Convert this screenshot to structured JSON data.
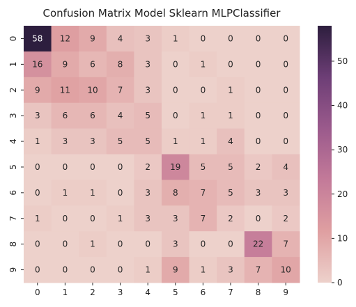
{
  "chart_data": {
    "type": "heatmap",
    "title": "Confusion Matrix Model Sklearn MLPClassifier",
    "xlabel": "",
    "ylabel": "",
    "x_categories": [
      "0",
      "1",
      "2",
      "3",
      "4",
      "5",
      "6",
      "7",
      "8",
      "9"
    ],
    "y_categories": [
      "0",
      "1",
      "2",
      "3",
      "4",
      "5",
      "6",
      "7",
      "8",
      "9"
    ],
    "values": [
      [
        58,
        12,
        9,
        4,
        3,
        1,
        0,
        0,
        0,
        0
      ],
      [
        16,
        9,
        6,
        8,
        3,
        0,
        1,
        0,
        0,
        0
      ],
      [
        9,
        11,
        10,
        7,
        3,
        0,
        0,
        1,
        0,
        0
      ],
      [
        3,
        6,
        6,
        4,
        5,
        0,
        1,
        1,
        0,
        0
      ],
      [
        1,
        3,
        3,
        5,
        5,
        1,
        1,
        4,
        0,
        0
      ],
      [
        0,
        0,
        0,
        0,
        2,
        19,
        5,
        5,
        2,
        4
      ],
      [
        0,
        1,
        1,
        0,
        3,
        8,
        7,
        5,
        3,
        3
      ],
      [
        1,
        0,
        0,
        1,
        3,
        3,
        7,
        2,
        0,
        2
      ],
      [
        0,
        0,
        1,
        0,
        0,
        3,
        0,
        0,
        22,
        7
      ],
      [
        0,
        0,
        0,
        0,
        1,
        9,
        1,
        3,
        7,
        10
      ]
    ],
    "vmin": 0,
    "vmax": 58,
    "colorbar": {
      "ticks": [
        0,
        10,
        20,
        30,
        40,
        50
      ],
      "tick_labels": [
        "0",
        "10",
        "20",
        "30",
        "40",
        "50"
      ]
    },
    "colormap_colors": [
      "#edd1cb",
      "#df9fa1",
      "#c37a99",
      "#9b5a8c",
      "#6d3e76",
      "#2d1e3e"
    ],
    "annotation_dark_text": "#262626",
    "annotation_light_text": "#ffffff"
  }
}
